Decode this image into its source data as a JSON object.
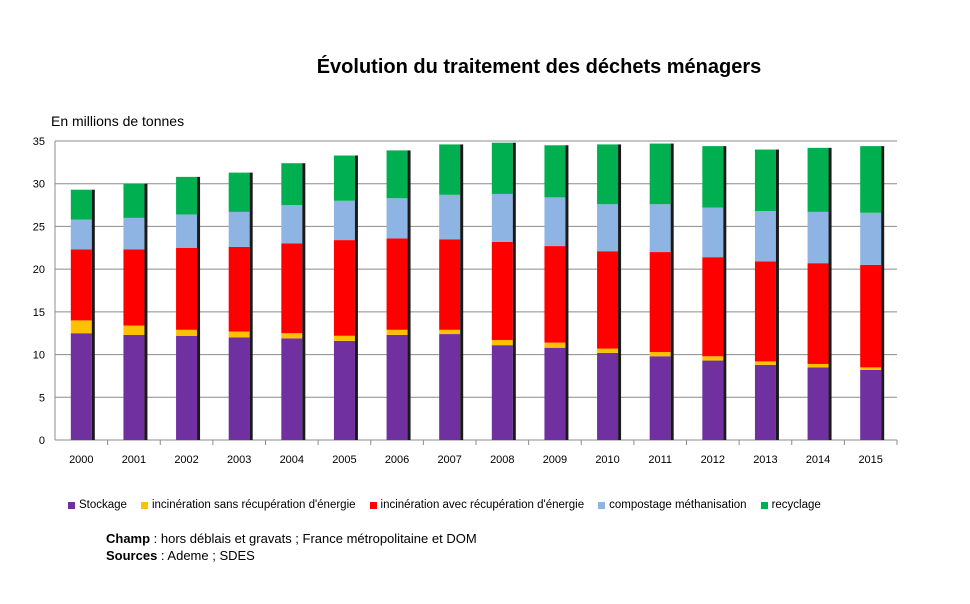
{
  "chart_data": {
    "type": "bar",
    "stacked": true,
    "title": "Évolution du traitement des déchets ménagers",
    "ylabel": "En millions de tonnes",
    "xlabel": "",
    "ylim": [
      0,
      35
    ],
    "yticks": [
      0,
      5,
      10,
      15,
      20,
      25,
      30,
      35
    ],
    "grid": true,
    "legend_position": "bottom",
    "categories": [
      "2000",
      "2001",
      "2002",
      "2003",
      "2004",
      "2005",
      "2006",
      "2007",
      "2008",
      "2009",
      "2010",
      "2011",
      "2012",
      "2013",
      "2014",
      "2015"
    ],
    "series": [
      {
        "name": "Stockage",
        "color": "#7030A0",
        "values": [
          12.5,
          12.3,
          12.2,
          12.0,
          11.9,
          11.6,
          12.3,
          12.4,
          11.1,
          10.8,
          10.2,
          9.8,
          9.3,
          8.8,
          8.5,
          8.2
        ]
      },
      {
        "name": "incinération sans récupération d'énergie",
        "color": "#FFC000",
        "values": [
          1.5,
          1.1,
          0.7,
          0.7,
          0.6,
          0.6,
          0.6,
          0.5,
          0.6,
          0.6,
          0.5,
          0.5,
          0.5,
          0.4,
          0.4,
          0.3
        ]
      },
      {
        "name": "incinération avec récupération d'énergie",
        "color": "#FF0000",
        "values": [
          8.3,
          8.9,
          9.6,
          9.9,
          10.5,
          11.2,
          10.7,
          10.6,
          11.5,
          11.3,
          11.4,
          11.7,
          11.6,
          11.7,
          11.8,
          12.0
        ]
      },
      {
        "name": "compostage méthanisation",
        "color": "#8EB4E3",
        "values": [
          3.5,
          3.7,
          3.9,
          4.1,
          4.5,
          4.6,
          4.7,
          5.2,
          5.6,
          5.7,
          5.5,
          5.6,
          5.8,
          5.9,
          6.0,
          6.1
        ]
      },
      {
        "name": "recyclage",
        "color": "#00B050",
        "values": [
          3.5,
          4.0,
          4.4,
          4.6,
          4.9,
          5.3,
          5.6,
          5.9,
          6.0,
          6.1,
          7.0,
          7.1,
          7.2,
          7.2,
          7.5,
          7.8
        ]
      }
    ]
  },
  "footer": {
    "champ_label": "Champ",
    "champ_text": " : hors déblais et gravats ; France métropolitaine et DOM",
    "sources_label": "Sources",
    "sources_text": " : Ademe ; SDES"
  }
}
